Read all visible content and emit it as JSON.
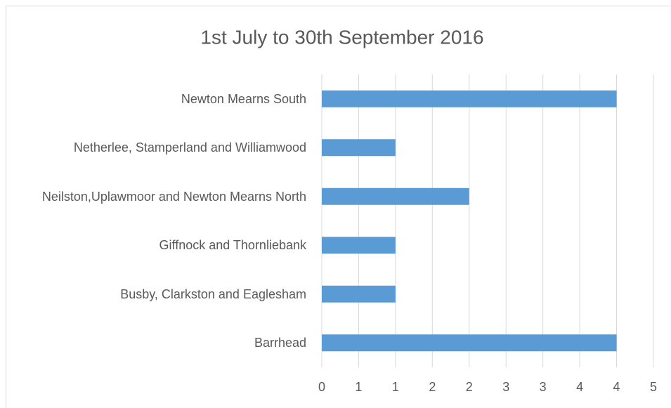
{
  "chart_data": {
    "type": "bar",
    "orientation": "horizontal",
    "title": "1st July to 30th September 2016",
    "categories": [
      "Newton Mearns South",
      "Netherlee, Stamperland and Williamwood",
      "Neilston,Uplawmoor and Newton Mearns North",
      "Giffnock and Thornliebank",
      "Busby, Clarkston and Eaglesham",
      "Barrhead"
    ],
    "values": [
      4,
      1,
      2,
      1,
      1,
      4
    ],
    "color": "#5b9bd5",
    "xlim": [
      0,
      4.5
    ],
    "xticks": [
      0,
      {
        "value": 0.5,
        "label": "1"
      },
      1,
      {
        "value": 1.5,
        "label": "2"
      },
      2,
      {
        "value": 2.5,
        "label": "3"
      },
      3,
      {
        "value": 3.5,
        "label": "4"
      },
      4,
      {
        "value": 4.5,
        "label": "5"
      }
    ],
    "grid": true
  }
}
